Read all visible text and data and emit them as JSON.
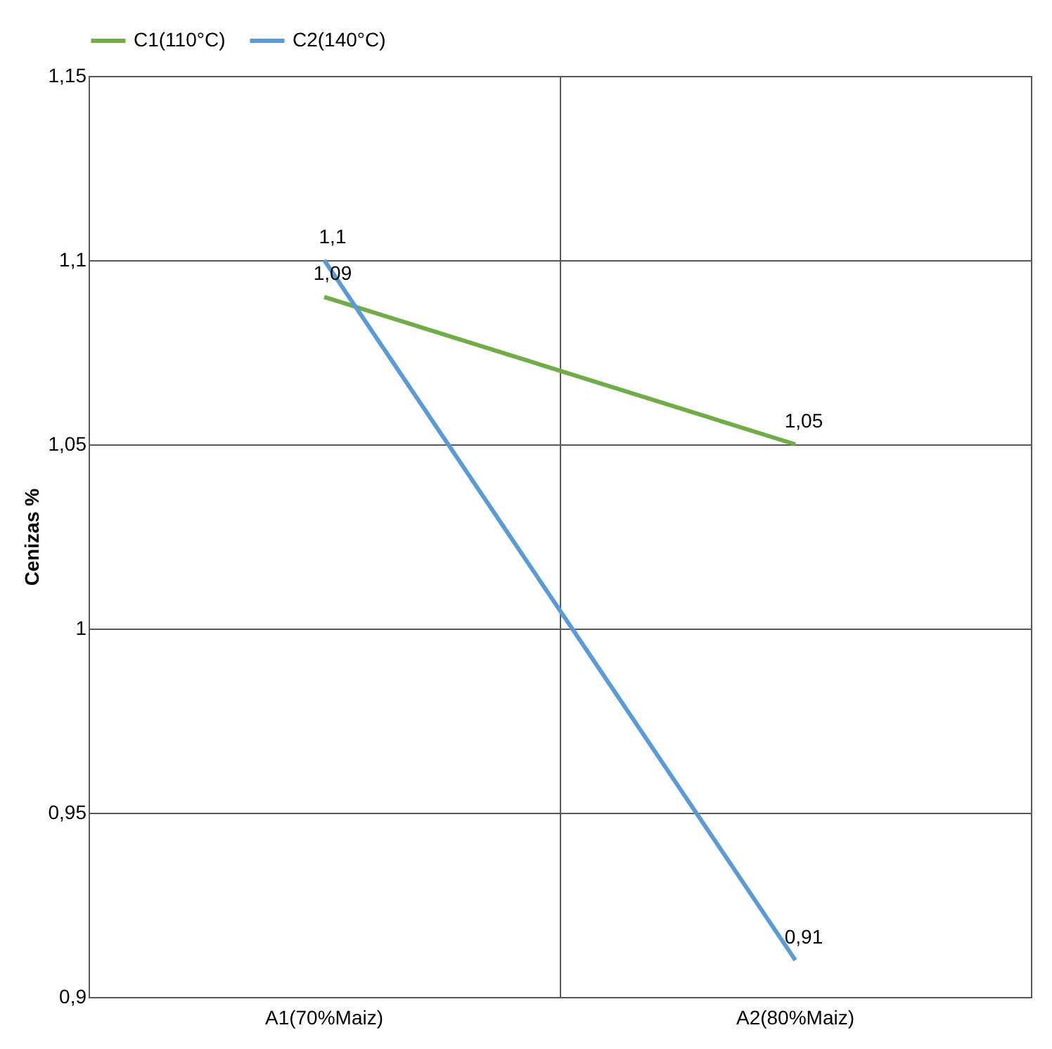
{
  "chart_data": {
    "type": "line",
    "ylabel": "Cenizas %",
    "categories": [
      "A1(70%Maiz)",
      "A2(80%Maiz)"
    ],
    "series": [
      {
        "name": "C1(110°C)",
        "color": "#70ad47",
        "values": [
          1.09,
          1.05
        ],
        "value_labels": [
          "1,09",
          "1,05"
        ]
      },
      {
        "name": "C2(140°C)",
        "color": "#5b9bd5",
        "values": [
          1.1,
          0.91
        ],
        "value_labels": [
          "1,1",
          "0,91"
        ]
      }
    ],
    "ylim": [
      0.9,
      1.15
    ],
    "yticks": [
      {
        "value": 0.9,
        "label": "0,9"
      },
      {
        "value": 0.95,
        "label": "0,95"
      },
      {
        "value": 1,
        "label": "1"
      },
      {
        "value": 1.05,
        "label": "1,05"
      },
      {
        "value": 1.1,
        "label": "1,1"
      },
      {
        "value": 1.15,
        "label": "1,15"
      }
    ],
    "grid": true,
    "legend": "top",
    "marker": "none",
    "line_style": "solid"
  }
}
